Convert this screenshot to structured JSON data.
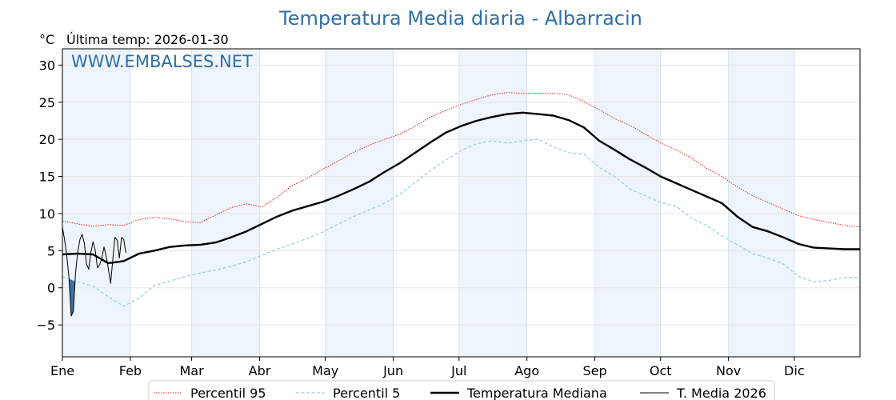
{
  "chart_data": {
    "type": "line",
    "title": "Temperatura Media diaria - Albarracin",
    "unit_label": "°C",
    "last_temp_label": "Última temp: 2026-01-30",
    "watermark": "WWW.EMBALSES.NET",
    "x_day_range": [
      1,
      365
    ],
    "ylim": [
      -9.3,
      32.2
    ],
    "y_ticks": [
      -5,
      0,
      5,
      10,
      15,
      20,
      25,
      30
    ],
    "y_tick_labels": [
      "−5",
      "0",
      "5",
      "10",
      "15",
      "20",
      "25",
      "30"
    ],
    "months": [
      {
        "label": "Ene",
        "start_day": 1
      },
      {
        "label": "Feb",
        "start_day": 32
      },
      {
        "label": "Mar",
        "start_day": 60
      },
      {
        "label": "Abr",
        "start_day": 91
      },
      {
        "label": "May",
        "start_day": 121
      },
      {
        "label": "Jun",
        "start_day": 152
      },
      {
        "label": "Jul",
        "start_day": 182
      },
      {
        "label": "Ago",
        "start_day": 213
      },
      {
        "label": "Sep",
        "start_day": 244
      },
      {
        "label": "Oct",
        "start_day": 274
      },
      {
        "label": "Nov",
        "start_day": 305
      },
      {
        "label": "Dic",
        "start_day": 335
      }
    ],
    "shaded_months": [
      "Ene",
      "Mar",
      "May",
      "Jul",
      "Sep",
      "Nov"
    ],
    "grid": true,
    "legend_position": "bottom",
    "colors": {
      "title": "#2e6fa7",
      "p95": "#e8231f",
      "p5": "#9cd1e0",
      "median": "#000000",
      "current": "#000000",
      "above_fill": "#e8a3a3",
      "below_fill": "#3a6fa0",
      "band": "#edf4fb"
    },
    "series": [
      {
        "name": "Percentil 95",
        "key": "p95",
        "style": "dotted",
        "x": [
          1,
          8,
          15,
          22,
          29,
          36,
          43,
          50,
          57,
          64,
          71,
          78,
          85,
          92,
          99,
          106,
          113,
          120,
          127,
          134,
          141,
          148,
          155,
          162,
          169,
          176,
          183,
          190,
          197,
          204,
          211,
          218,
          225,
          232,
          239,
          246,
          253,
          260,
          267,
          274,
          281,
          288,
          295,
          302,
          309,
          316,
          323,
          330,
          337,
          344,
          351,
          358,
          365
        ],
        "values": [
          9.0,
          8.6,
          8.3,
          8.5,
          8.4,
          9.2,
          9.5,
          9.3,
          8.9,
          8.8,
          9.8,
          10.8,
          11.3,
          10.9,
          12.2,
          13.8,
          14.8,
          16.0,
          17.1,
          18.3,
          19.2,
          20.0,
          20.7,
          21.8,
          23.0,
          23.9,
          24.7,
          25.4,
          26.0,
          26.3,
          26.2,
          26.2,
          26.2,
          26.0,
          25.1,
          24.0,
          22.8,
          21.9,
          20.7,
          19.5,
          18.6,
          17.5,
          16.1,
          15.0,
          13.6,
          12.4,
          11.5,
          10.6,
          9.7,
          9.2,
          8.8,
          8.4,
          8.2
        ]
      },
      {
        "name": "Percentil 5",
        "key": "p5",
        "style": "dashed",
        "x": [
          1,
          8,
          15,
          22,
          29,
          36,
          43,
          50,
          57,
          64,
          71,
          78,
          85,
          92,
          99,
          106,
          113,
          120,
          127,
          134,
          141,
          148,
          155,
          162,
          169,
          176,
          183,
          190,
          197,
          204,
          211,
          218,
          225,
          232,
          239,
          246,
          253,
          260,
          267,
          274,
          281,
          288,
          295,
          302,
          309,
          316,
          323,
          330,
          337,
          344,
          351,
          358,
          365
        ],
        "values": [
          1.5,
          0.8,
          0.2,
          -1.2,
          -2.5,
          -1.4,
          0.3,
          0.9,
          1.5,
          2.0,
          2.4,
          2.9,
          3.5,
          4.4,
          5.2,
          5.9,
          6.7,
          7.5,
          8.6,
          9.6,
          10.5,
          11.4,
          12.6,
          14.2,
          15.8,
          17.2,
          18.5,
          19.4,
          19.8,
          19.5,
          19.8,
          20.0,
          19.0,
          18.2,
          18.0,
          16.2,
          15.0,
          13.3,
          12.4,
          11.5,
          11.0,
          9.4,
          8.4,
          7.0,
          5.8,
          4.6,
          4.0,
          3.2,
          1.5,
          0.8,
          1.0,
          1.4,
          1.4
        ]
      },
      {
        "name": "Temperatura Mediana",
        "key": "median",
        "style": "solid-thick",
        "x": [
          1,
          8,
          15,
          22,
          29,
          36,
          43,
          50,
          57,
          64,
          71,
          78,
          85,
          92,
          99,
          106,
          113,
          120,
          127,
          134,
          141,
          148,
          155,
          162,
          169,
          176,
          183,
          190,
          197,
          204,
          211,
          218,
          225,
          232,
          239,
          246,
          253,
          260,
          267,
          274,
          281,
          288,
          295,
          302,
          309,
          316,
          323,
          330,
          337,
          344,
          351,
          358,
          365
        ],
        "values": [
          4.5,
          4.6,
          4.5,
          3.3,
          3.6,
          4.6,
          5.0,
          5.5,
          5.7,
          5.8,
          6.1,
          6.8,
          7.6,
          8.6,
          9.6,
          10.4,
          11.0,
          11.6,
          12.4,
          13.3,
          14.3,
          15.6,
          16.8,
          18.2,
          19.6,
          20.9,
          21.8,
          22.5,
          23.0,
          23.4,
          23.6,
          23.4,
          23.2,
          22.6,
          21.6,
          19.8,
          18.6,
          17.3,
          16.2,
          15.0,
          14.1,
          13.2,
          12.3,
          11.4,
          9.6,
          8.2,
          7.6,
          6.8,
          5.9,
          5.4,
          5.3,
          5.2,
          5.2
        ]
      },
      {
        "name": "T. Media 2026",
        "key": "current",
        "style": "solid-thin",
        "x": [
          1,
          2,
          3,
          4,
          5,
          6,
          7,
          8,
          9,
          10,
          11,
          12,
          13,
          14,
          15,
          16,
          17,
          18,
          19,
          20,
          21,
          22,
          23,
          24,
          25,
          26,
          27,
          28,
          29,
          30
        ],
        "values": [
          8.2,
          6.5,
          4.3,
          1.4,
          -3.8,
          -3.2,
          2.0,
          4.8,
          6.5,
          7.2,
          6.0,
          3.2,
          2.5,
          4.8,
          6.2,
          5.0,
          2.7,
          3.1,
          4.0,
          5.5,
          4.2,
          2.5,
          0.6,
          3.8,
          6.8,
          6.4,
          4.0,
          6.8,
          6.5,
          4.7
        ]
      }
    ]
  }
}
